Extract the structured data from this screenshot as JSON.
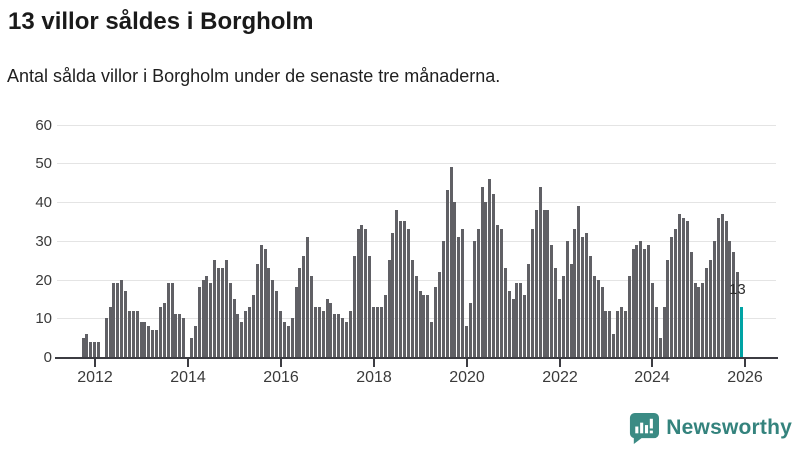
{
  "header": {
    "title": "13 villor såldes i Borgholm",
    "subtitle": "Antal sålda villor i Borgholm under de senaste tre månaderna."
  },
  "chart_data": {
    "type": "bar",
    "title": "13 villor såldes i Borgholm",
    "subtitle": "Antal sålda villor i Borgholm under de senaste tre månaderna.",
    "unit": "villor per månad",
    "x_start_month": "2011-10",
    "x_end_month": "2025-12",
    "x_tick_labels": [
      "2012",
      "2014",
      "2016",
      "2018",
      "2020",
      "2022",
      "2024",
      "2026"
    ],
    "y_ticks": [
      0,
      10,
      20,
      30,
      40,
      50,
      60
    ],
    "ylim": [
      0,
      60
    ],
    "grid": "horizontal",
    "bar_color": "#606065",
    "highlight_color": "#00a3a4",
    "highlight_last_bar": true,
    "highlight_value_label": "13",
    "values": [
      5,
      6,
      4,
      4,
      4,
      0,
      10,
      13,
      19,
      19,
      20,
      17,
      12,
      12,
      12,
      9,
      9,
      8,
      7,
      7,
      13,
      14,
      19,
      19,
      11,
      11,
      10,
      0,
      5,
      8,
      18,
      20,
      21,
      19,
      25,
      23,
      23,
      25,
      19,
      15,
      11,
      9,
      12,
      13,
      16,
      24,
      29,
      28,
      23,
      20,
      17,
      12,
      9,
      8,
      10,
      18,
      23,
      26,
      31,
      21,
      13,
      13,
      12,
      15,
      14,
      11,
      11,
      10,
      9,
      12,
      26,
      33,
      34,
      33,
      26,
      13,
      13,
      13,
      16,
      25,
      32,
      38,
      35,
      35,
      33,
      25,
      21,
      17,
      16,
      16,
      9,
      18,
      22,
      30,
      43,
      49,
      40,
      31,
      33,
      8,
      14,
      30,
      33,
      44,
      40,
      46,
      42,
      34,
      33,
      23,
      17,
      15,
      19,
      19,
      16,
      24,
      33,
      38,
      44,
      38,
      38,
      29,
      23,
      15,
      21,
      30,
      24,
      33,
      39,
      31,
      32,
      26,
      21,
      20,
      18,
      12,
      12,
      6,
      12,
      13,
      12,
      21,
      28,
      29,
      30,
      28,
      29,
      19,
      13,
      5,
      13,
      25,
      31,
      33,
      37,
      36,
      35,
      27,
      19,
      18,
      19,
      23,
      25,
      30,
      36,
      37,
      35,
      30,
      27,
      22,
      13
    ]
  },
  "branding": {
    "logo_text": "Newsworthy",
    "logo_color": "#34837d"
  }
}
